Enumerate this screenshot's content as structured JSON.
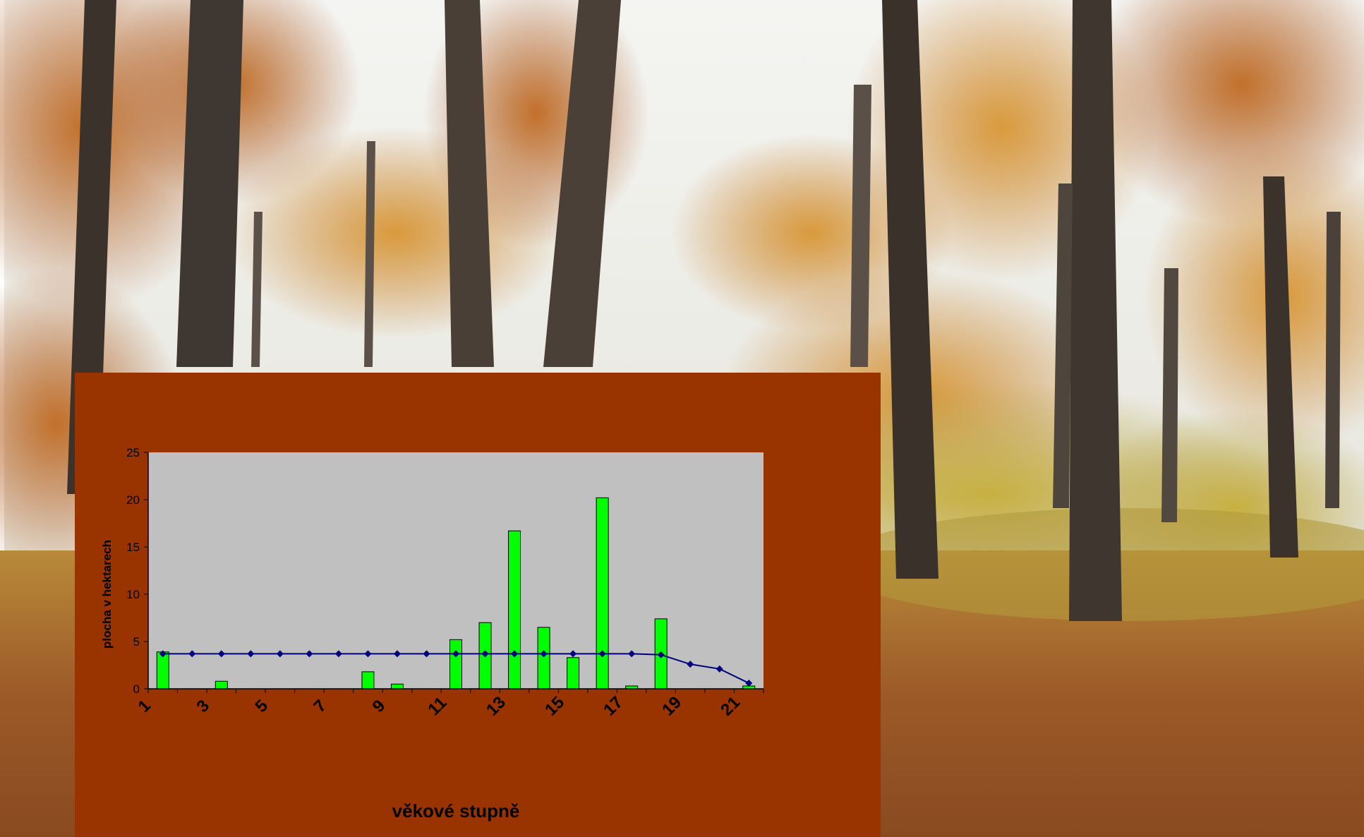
{
  "colors": {
    "panel_bg": "#993300",
    "plot_bg": "#c0c0c0",
    "bar_fill": "#00ff00",
    "bar_stroke": "#000000",
    "line": "#000080"
  },
  "chart_data": {
    "type": "bar",
    "xlabel": "věkové stupně",
    "ylabel": "plocha v hektarech",
    "ylim": [
      0,
      25
    ],
    "yticks": [
      0,
      5,
      10,
      15,
      20,
      25
    ],
    "categories": [
      1,
      2,
      3,
      4,
      5,
      6,
      7,
      8,
      9,
      10,
      11,
      12,
      13,
      14,
      15,
      16,
      17,
      18,
      19,
      20,
      21
    ],
    "xtick_labels": [
      "1",
      "3",
      "5",
      "7",
      "9",
      "11",
      "13",
      "15",
      "17",
      "19",
      "21"
    ],
    "series": [
      {
        "kind": "bar",
        "values": [
          3.9,
          0,
          0.8,
          0,
          0,
          0,
          0,
          1.8,
          0.5,
          0,
          5.2,
          7.0,
          16.7,
          6.5,
          3.3,
          20.2,
          0.3,
          7.4,
          0,
          0,
          0.3
        ]
      },
      {
        "kind": "line",
        "values": [
          3.7,
          3.7,
          3.7,
          3.7,
          3.7,
          3.7,
          3.7,
          3.7,
          3.7,
          3.7,
          3.7,
          3.7,
          3.7,
          3.7,
          3.7,
          3.7,
          3.7,
          3.6,
          2.6,
          2.1,
          0.6
        ]
      }
    ],
    "grid": false,
    "legend": "none"
  }
}
